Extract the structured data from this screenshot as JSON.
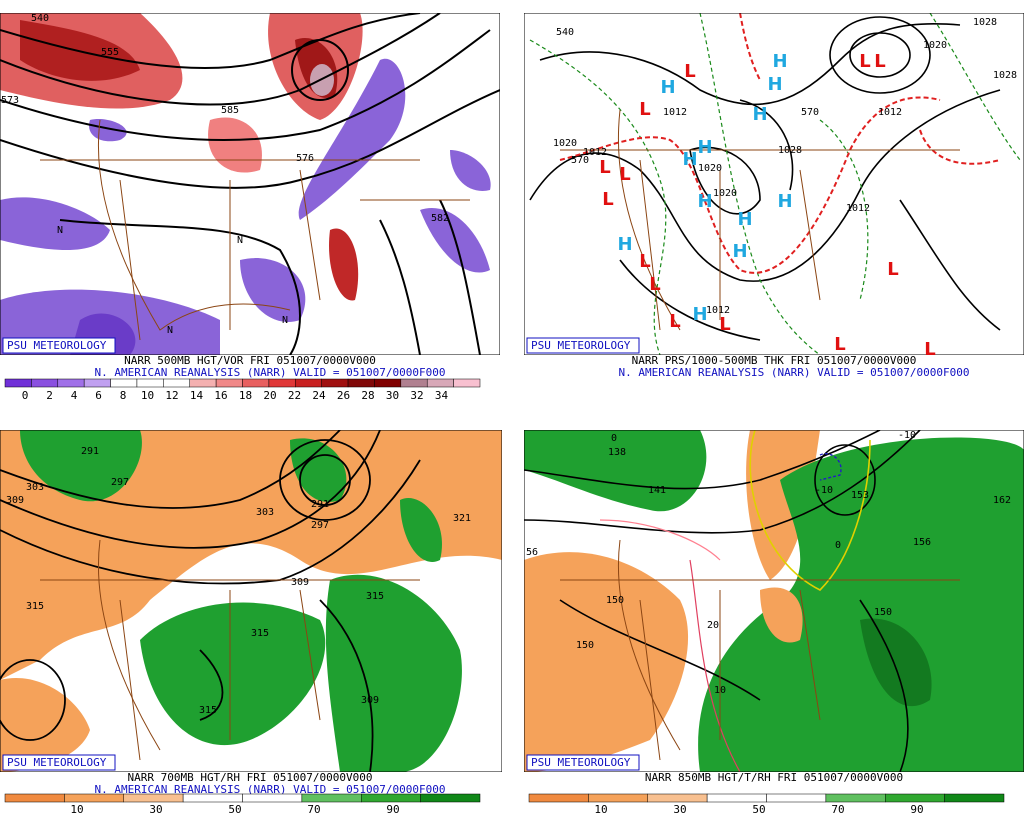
{
  "panels": [
    {
      "badge": "PSU METEOROLOGY",
      "caption": "NARR 500MB HGT/VOR FRI 051007/0000V000",
      "subcaption": "N. AMERICAN REANALYSIS (NARR) VALID = 051007/0000F000",
      "colorbar": [
        0,
        2,
        4,
        6,
        8,
        10,
        12,
        14,
        16,
        18,
        20,
        22,
        24,
        26,
        28,
        30,
        32,
        34
      ],
      "contour_labels": [
        "540",
        "555",
        "573",
        "585",
        "576",
        "582",
        "N",
        "N",
        "N",
        "N"
      ]
    },
    {
      "badge": "PSU METEOROLOGY",
      "caption": "NARR PRS/1000-500MB THK FRI 051007/0000V000",
      "subcaption": "N. AMERICAN REANALYSIS (NARR) VALID = 051007/0000F000",
      "contour_labels": [
        "540",
        "1028",
        "1028",
        "1020",
        "570",
        "1012",
        "1012",
        "1020",
        "1020",
        "1028",
        "1012",
        "1012",
        "1020",
        "1012",
        "570"
      ],
      "pressure_centers": [
        "L",
        "L",
        "L",
        "L",
        "L",
        "L",
        "L",
        "L",
        "L",
        "L",
        "L",
        "L",
        "L",
        "L",
        "H",
        "H",
        "H",
        "H",
        "H",
        "H",
        "H",
        "H",
        "H",
        "H",
        "H",
        "H"
      ]
    },
    {
      "badge": "PSU METEOROLOGY",
      "caption": "NARR 700MB HGT/RH FRI 051007/0000V000",
      "subcaption": "N. AMERICAN REANALYSIS (NARR) VALID = 051007/0000F000",
      "colorbar": [
        10,
        30,
        50,
        70,
        90
      ],
      "contour_labels": [
        "291",
        "297",
        "303",
        "309",
        "303",
        "291",
        "297",
        "321",
        "309",
        "315",
        "315",
        "315",
        "309",
        "315"
      ]
    },
    {
      "badge": "PSU METEOROLOGY",
      "caption": "NARR 850MB HGT/T/RH FRI 051007/0000V000",
      "colorbar": [
        10,
        30,
        50,
        70,
        90
      ],
      "contour_labels": [
        "138",
        "141",
        "150",
        "150",
        "153",
        "156",
        "150",
        "162",
        "56",
        "-10",
        "-10",
        "10",
        "20",
        "0",
        "0"
      ]
    }
  ]
}
